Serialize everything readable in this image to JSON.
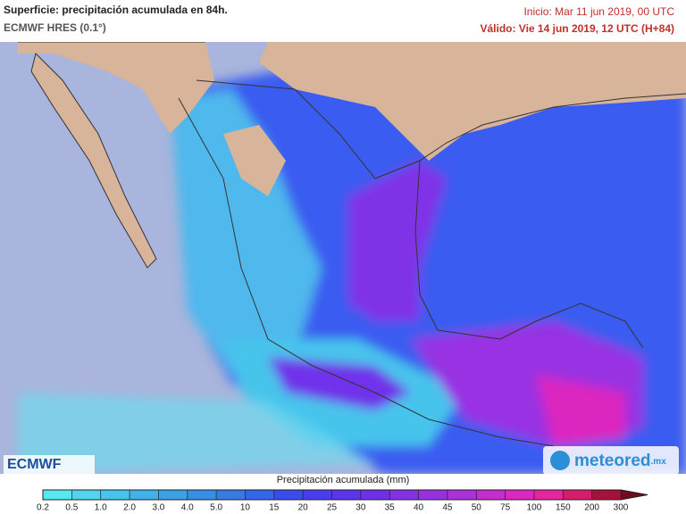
{
  "header": {
    "title": "Superficie: precipitación acumulada en 84h.",
    "model": "ECMWF HRES (0.1°)",
    "init": "Inicio: Mar 11 jun 2019, 00 UTC",
    "valid": "Válido: Vie 14 jun 2019, 12 UTC (H+84)"
  },
  "logos": {
    "left": "ECMWF",
    "right": "meteored",
    "right_suffix": ".mx"
  },
  "legend": {
    "title": "Precipitación acumulada (mm)",
    "ticks": [
      "0.2",
      "0.5",
      "1.0",
      "2.0",
      "3.0",
      "4.0",
      "5.0",
      "10",
      "15",
      "20",
      "25",
      "30",
      "35",
      "40",
      "45",
      "50",
      "75",
      "100",
      "150",
      "200",
      "300"
    ],
    "colors": [
      "#55e8f0",
      "#4fd6ee",
      "#46c4ec",
      "#3fb2ea",
      "#3aa0e8",
      "#368ee6",
      "#347ce4",
      "#3366e8",
      "#3a4cee",
      "#4a3cf0",
      "#5c34ee",
      "#7030ea",
      "#8430e6",
      "#9830e2",
      "#ac2edc",
      "#c42cd2",
      "#dc28c0",
      "#e8249e",
      "#d81c6c",
      "#a8103c",
      "#700a1c"
    ]
  }
}
